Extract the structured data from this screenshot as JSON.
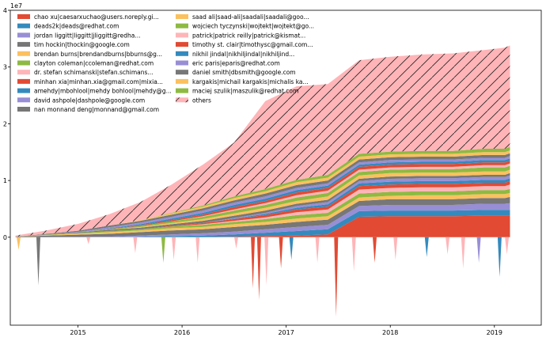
{
  "chart_data": {
    "type": "area",
    "stacked": true,
    "title": "",
    "xlabel": "",
    "ylabel": "",
    "y_multiplier": "1e7",
    "xlim": [
      2014.35,
      2019.45
    ],
    "ylim": [
      -1.55,
      4.0
    ],
    "x_ticks": [
      2015,
      2016,
      2017,
      2018,
      2019
    ],
    "x_tick_labels": [
      "2015",
      "2016",
      "2017",
      "2018",
      "2019"
    ],
    "y_ticks": [
      0,
      1,
      2,
      3,
      4
    ],
    "y_tick_labels": [
      "0",
      "1",
      "2",
      "3",
      "4"
    ],
    "grid": false,
    "legend": "top-left, 2 columns",
    "x": [
      2014.4,
      2014.7,
      2015.0,
      2015.3,
      2015.6,
      2015.9,
      2016.2,
      2016.5,
      2016.8,
      2017.1,
      2017.4,
      2017.7,
      2018.0,
      2018.3,
      2018.6,
      2018.9,
      2019.1,
      2019.15
    ],
    "series": [
      {
        "name": "chao xu|caesarxuchao@users.noreply.gi...",
        "color": "#e24a33",
        "values": [
          0,
          0,
          0,
          0,
          0,
          0,
          0,
          0.01,
          0.02,
          0.03,
          0.05,
          0.36,
          0.37,
          0.37,
          0.37,
          0.38,
          0.38,
          0.38
        ]
      },
      {
        "name": "deads2k|deads@redhat.com",
        "color": "#348abd",
        "values": [
          0,
          0,
          0,
          0,
          0.01,
          0.02,
          0.03,
          0.04,
          0.06,
          0.08,
          0.09,
          0.1,
          0.1,
          0.1,
          0.1,
          0.1,
          0.1,
          0.1
        ]
      },
      {
        "name": "jordan liggitt|liggitt|jliggitt@redha...",
        "color": "#988ed5",
        "values": [
          0,
          0,
          0.005,
          0.01,
          0.02,
          0.03,
          0.04,
          0.05,
          0.06,
          0.07,
          0.08,
          0.09,
          0.1,
          0.1,
          0.1,
          0.11,
          0.11,
          0.12
        ]
      },
      {
        "name": "tim hockin|thockin@google.com",
        "color": "#777777",
        "values": [
          0.01,
          0.03,
          0.04,
          0.05,
          0.06,
          0.07,
          0.07,
          0.08,
          0.08,
          0.09,
          0.09,
          0.09,
          0.1,
          0.1,
          0.1,
          0.1,
          0.1,
          0.11
        ]
      },
      {
        "name": "brendan burns|brendandburns|bburns@g...",
        "color": "#fbc15e",
        "values": [
          0,
          0.01,
          0.02,
          0.03,
          0.03,
          0.04,
          0.04,
          0.05,
          0.05,
          0.06,
          0.06,
          0.06,
          0.06,
          0.07,
          0.07,
          0.07,
          0.07,
          0.07
        ]
      },
      {
        "name": "clayton coleman|ccoleman@redhat.com",
        "color": "#8eba42",
        "values": [
          0,
          0.005,
          0.01,
          0.02,
          0.02,
          0.03,
          0.04,
          0.04,
          0.05,
          0.06,
          0.06,
          0.07,
          0.07,
          0.07,
          0.07,
          0.07,
          0.07,
          0.07
        ]
      },
      {
        "name": "dr. stefan schimanski|stefan.schimans...",
        "color": "#ffb5b8",
        "values": [
          0,
          0,
          0,
          0,
          0,
          0,
          0.01,
          0.02,
          0.03,
          0.05,
          0.06,
          0.07,
          0.07,
          0.07,
          0.07,
          0.07,
          0.07,
          0.08
        ]
      },
      {
        "name": "minhan xia|minhan.xia@gmail.com|mixia...",
        "color": "#e24a33",
        "values": [
          0,
          0,
          0,
          0,
          0,
          0.01,
          0.02,
          0.03,
          0.04,
          0.05,
          0.05,
          0.06,
          0.06,
          0.06,
          0.06,
          0.06,
          0.06,
          0.06
        ]
      },
      {
        "name": "amehdy|mbohlool|mehdy bohlool|mehdy@g...",
        "color": "#348abd",
        "values": [
          0,
          0,
          0,
          0,
          0,
          0,
          0,
          0.01,
          0.02,
          0.03,
          0.04,
          0.05,
          0.05,
          0.05,
          0.05,
          0.05,
          0.05,
          0.05
        ]
      },
      {
        "name": "david ashpole|dashpole@google.com",
        "color": "#988ed5",
        "values": [
          0,
          0,
          0,
          0,
          0,
          0,
          0,
          0.01,
          0.02,
          0.03,
          0.04,
          0.04,
          0.05,
          0.05,
          0.05,
          0.05,
          0.05,
          0.05
        ]
      },
      {
        "name": "nan monnand deng|monnand@gmail.com",
        "color": "#777777",
        "values": [
          0,
          0.005,
          0.01,
          0.02,
          0.03,
          0.03,
          0.04,
          0.04,
          0.04,
          0.04,
          0.04,
          0.04,
          0.04,
          0.04,
          0.04,
          0.04,
          0.04,
          0.04
        ]
      },
      {
        "name": "saad ali|saad-ali|saadali|saadali@goo...",
        "color": "#fbc15e",
        "values": [
          0,
          0,
          0,
          0,
          0.01,
          0.02,
          0.03,
          0.04,
          0.05,
          0.05,
          0.06,
          0.06,
          0.06,
          0.06,
          0.06,
          0.06,
          0.06,
          0.06
        ]
      },
      {
        "name": "wojciech tyczynski|wojtekt|wojtekt@go...",
        "color": "#8eba42",
        "values": [
          0,
          0,
          0,
          0.01,
          0.02,
          0.03,
          0.04,
          0.05,
          0.05,
          0.06,
          0.06,
          0.06,
          0.06,
          0.06,
          0.06,
          0.07,
          0.07,
          0.07
        ]
      },
      {
        "name": "patrick|patrick reilly|patrick@kismat...",
        "color": "#ffb5b8",
        "values": [
          0,
          0,
          0,
          0,
          0,
          0,
          0.01,
          0.02,
          0.03,
          0.04,
          0.04,
          0.04,
          0.04,
          0.04,
          0.04,
          0.04,
          0.04,
          0.04
        ]
      },
      {
        "name": "timothy st. clair|timothysc@gmail.com...",
        "color": "#e24a33",
        "values": [
          0,
          0,
          0,
          0.005,
          0.01,
          0.02,
          0.03,
          0.04,
          0.04,
          0.05,
          0.05,
          0.05,
          0.05,
          0.05,
          0.05,
          0.05,
          0.05,
          0.05
        ]
      },
      {
        "name": "nikhil jindal|nikhiljindal|nikhiljind...",
        "color": "#348abd",
        "values": [
          0,
          0,
          0,
          0.01,
          0.02,
          0.03,
          0.03,
          0.04,
          0.04,
          0.04,
          0.04,
          0.04,
          0.04,
          0.04,
          0.04,
          0.04,
          0.04,
          0.04
        ]
      },
      {
        "name": "eric paris|eparis@redhat.com",
        "color": "#988ed5",
        "values": [
          0,
          0,
          0.01,
          0.02,
          0.03,
          0.03,
          0.04,
          0.04,
          0.04,
          0.04,
          0.04,
          0.04,
          0.04,
          0.04,
          0.04,
          0.04,
          0.04,
          0.04
        ]
      },
      {
        "name": "daniel smith|dbsmith@google.com",
        "color": "#777777",
        "values": [
          0,
          0.01,
          0.02,
          0.03,
          0.03,
          0.04,
          0.04,
          0.04,
          0.05,
          0.05,
          0.05,
          0.05,
          0.05,
          0.05,
          0.05,
          0.05,
          0.05,
          0.05
        ]
      },
      {
        "name": "kargakis|michail kargakis|michalis ka...",
        "color": "#fbc15e",
        "values": [
          0,
          0,
          0,
          0,
          0.01,
          0.02,
          0.03,
          0.04,
          0.04,
          0.05,
          0.05,
          0.05,
          0.05,
          0.05,
          0.05,
          0.05,
          0.05,
          0.05
        ]
      },
      {
        "name": "maciej szulik|maszulik@redhat.com",
        "color": "#8eba42",
        "values": [
          0,
          0,
          0,
          0,
          0,
          0.01,
          0.02,
          0.03,
          0.04,
          0.04,
          0.05,
          0.05,
          0.05,
          0.05,
          0.05,
          0.06,
          0.06,
          0.06
        ]
      },
      {
        "name": "others",
        "color": "#ffb5b8",
        "hatch": true,
        "values": [
          0.02,
          0.06,
          0.12,
          0.2,
          0.32,
          0.5,
          0.72,
          0.95,
          1.55,
          1.65,
          1.6,
          1.65,
          1.67,
          1.7,
          1.72,
          1.74,
          1.78,
          1.79
        ]
      }
    ],
    "negative_spikes": [
      {
        "x": 2014.43,
        "y": -0.22,
        "color": "#fbc15e"
      },
      {
        "x": 2014.62,
        "y": -0.85,
        "color": "#777777"
      },
      {
        "x": 2015.1,
        "y": -0.12,
        "color": "#ffb5b8"
      },
      {
        "x": 2015.55,
        "y": -0.28,
        "color": "#ffb5b8"
      },
      {
        "x": 2015.82,
        "y": -0.45,
        "color": "#8eba42"
      },
      {
        "x": 2015.92,
        "y": -0.4,
        "color": "#ffb5b8"
      },
      {
        "x": 2016.15,
        "y": -0.45,
        "color": "#ffb5b8"
      },
      {
        "x": 2016.52,
        "y": -0.2,
        "color": "#ffb5b8"
      },
      {
        "x": 2016.68,
        "y": -0.9,
        "color": "#e24a33"
      },
      {
        "x": 2016.74,
        "y": -1.1,
        "color": "#e24a33"
      },
      {
        "x": 2016.81,
        "y": -0.85,
        "color": "#ffb5b8"
      },
      {
        "x": 2016.95,
        "y": -0.55,
        "color": "#e24a33"
      },
      {
        "x": 2017.05,
        "y": -0.4,
        "color": "#348abd"
      },
      {
        "x": 2017.3,
        "y": -0.45,
        "color": "#ffb5b8"
      },
      {
        "x": 2017.48,
        "y": -1.4,
        "color": "#e24a33"
      },
      {
        "x": 2017.65,
        "y": -0.6,
        "color": "#ffb5b8"
      },
      {
        "x": 2017.85,
        "y": -0.45,
        "color": "#e24a33"
      },
      {
        "x": 2018.05,
        "y": -0.4,
        "color": "#ffb5b8"
      },
      {
        "x": 2018.35,
        "y": -0.35,
        "color": "#348abd"
      },
      {
        "x": 2018.55,
        "y": -0.3,
        "color": "#ffb5b8"
      },
      {
        "x": 2018.7,
        "y": -0.55,
        "color": "#ffb5b8"
      },
      {
        "x": 2018.85,
        "y": -0.45,
        "color": "#988ed5"
      },
      {
        "x": 2019.05,
        "y": -0.7,
        "color": "#348abd"
      },
      {
        "x": 2019.12,
        "y": -0.3,
        "color": "#ffb5b8"
      }
    ]
  }
}
